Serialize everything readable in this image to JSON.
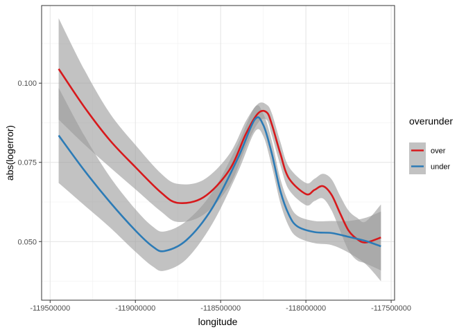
{
  "chart_data": {
    "type": "line",
    "title": "",
    "xlabel": "longitude",
    "ylabel": "abs(logerror)",
    "xlim": [
      -119550000,
      -117480000
    ],
    "ylim": [
      0.0315,
      0.1245
    ],
    "x_ticks": [
      -119500000,
      -119000000,
      -118500000,
      -118000000,
      -117500000
    ],
    "x_tick_labels": [
      "-119500000",
      "-119000000",
      "-118500000",
      "-118000000",
      "-117500000"
    ],
    "y_ticks": [
      0.05,
      0.075,
      0.1
    ],
    "y_tick_labels": [
      "0.050",
      "0.075",
      "0.100"
    ],
    "grid": true,
    "legend": {
      "title": "overunder",
      "position": "right"
    },
    "series": [
      {
        "name": "over",
        "color": "#d7191c",
        "x": [
          -119450000,
          -119300000,
          -119150000,
          -119000000,
          -118850000,
          -118750000,
          -118600000,
          -118450000,
          -118350000,
          -118280000,
          -118230000,
          -118200000,
          -118150000,
          -118100000,
          -118000000,
          -117950000,
          -117900000,
          -117850000,
          -117800000,
          -117750000,
          -117700000,
          -117650000,
          -117560000
        ],
        "y": [
          0.1045,
          0.0925,
          0.082,
          0.0735,
          0.0655,
          0.0622,
          0.064,
          0.0725,
          0.0842,
          0.0905,
          0.0908,
          0.087,
          0.0778,
          0.07,
          0.065,
          0.0663,
          0.0675,
          0.0648,
          0.059,
          0.0535,
          0.0508,
          0.0497,
          0.0513
        ],
        "band_upper": [
          0.1205,
          0.1043,
          0.0905,
          0.0805,
          0.0715,
          0.0682,
          0.0695,
          0.0775,
          0.0882,
          0.0935,
          0.0932,
          0.0905,
          0.0815,
          0.0736,
          0.0685,
          0.0698,
          0.0714,
          0.0697,
          0.0645,
          0.0598,
          0.0575,
          0.0563,
          0.0617
        ],
        "band_lower": [
          0.0885,
          0.0807,
          0.0735,
          0.0665,
          0.0595,
          0.0562,
          0.0585,
          0.0675,
          0.0802,
          0.0875,
          0.0884,
          0.0835,
          0.0741,
          0.0664,
          0.0615,
          0.0628,
          0.0636,
          0.0599,
          0.0535,
          0.0472,
          0.0441,
          0.0431,
          0.0409
        ]
      },
      {
        "name": "under",
        "color": "#2c7bb6",
        "x": [
          -119450000,
          -119300000,
          -119150000,
          -119000000,
          -118900000,
          -118830000,
          -118700000,
          -118550000,
          -118400000,
          -118300000,
          -118250000,
          -118200000,
          -118150000,
          -118100000,
          -118050000,
          -117950000,
          -117850000,
          -117750000,
          -117650000,
          -117560000
        ],
        "y": [
          0.0835,
          0.0725,
          0.0625,
          0.0535,
          0.0485,
          0.047,
          0.0505,
          0.0605,
          0.0762,
          0.0885,
          0.0868,
          0.0778,
          0.066,
          0.0585,
          0.0548,
          0.053,
          0.0527,
          0.0515,
          0.0502,
          0.0485
        ],
        "band_upper": [
          0.0985,
          0.0835,
          0.0705,
          0.0602,
          0.0548,
          0.0532,
          0.0565,
          0.0655,
          0.0806,
          0.0924,
          0.0903,
          0.0818,
          0.0698,
          0.0622,
          0.0582,
          0.0565,
          0.0565,
          0.0565,
          0.0575,
          0.0595
        ],
        "band_lower": [
          0.0685,
          0.0615,
          0.0545,
          0.0468,
          0.0422,
          0.0408,
          0.0445,
          0.0555,
          0.0718,
          0.0846,
          0.0833,
          0.0738,
          0.0622,
          0.0548,
          0.0514,
          0.0495,
          0.0489,
          0.0465,
          0.0429,
          0.0375
        ]
      }
    ]
  }
}
